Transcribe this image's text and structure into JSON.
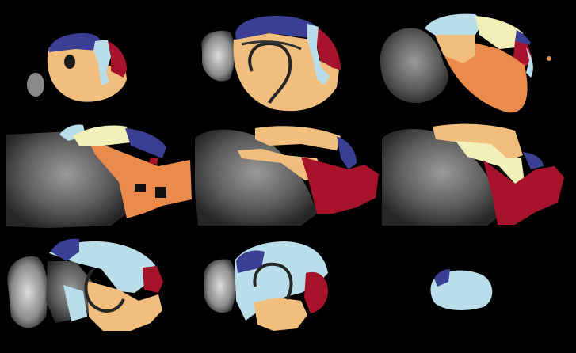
{
  "image": {
    "kind": "brain-atlas-montage",
    "view": "sagittal",
    "rows": 3,
    "cols": 3,
    "background_color": "#000000"
  },
  "palette": {
    "navy": "#3b3f93",
    "light_blue": "#b9dde9",
    "pale_yellow": "#f1f0b8",
    "peach": "#f2be7e",
    "orange": "#ea8a4b",
    "crimson": "#a8132c",
    "gray_tissue": "#7a7a7a"
  },
  "panels": [
    {
      "row": 1,
      "col": 1,
      "tissue_visible": false,
      "regions": [
        "navy",
        "light_blue",
        "crimson",
        "peach"
      ]
    },
    {
      "row": 1,
      "col": 2,
      "tissue_visible": true,
      "regions": [
        "navy",
        "light_blue",
        "crimson",
        "peach"
      ]
    },
    {
      "row": 1,
      "col": 3,
      "tissue_visible": true,
      "regions": [
        "light_blue",
        "pale_yellow",
        "navy",
        "crimson",
        "orange",
        "peach"
      ]
    },
    {
      "row": 2,
      "col": 1,
      "tissue_visible": true,
      "regions": [
        "light_blue",
        "pale_yellow",
        "navy",
        "orange",
        "crimson"
      ]
    },
    {
      "row": 2,
      "col": 2,
      "tissue_visible": true,
      "regions": [
        "peach",
        "navy",
        "crimson"
      ]
    },
    {
      "row": 2,
      "col": 3,
      "tissue_visible": true,
      "regions": [
        "peach",
        "pale_yellow",
        "navy",
        "crimson"
      ]
    },
    {
      "row": 3,
      "col": 1,
      "tissue_visible": true,
      "regions": [
        "navy",
        "light_blue",
        "crimson",
        "peach"
      ]
    },
    {
      "row": 3,
      "col": 2,
      "tissue_visible": true,
      "regions": [
        "navy",
        "light_blue",
        "crimson",
        "peach"
      ]
    },
    {
      "row": 3,
      "col": 3,
      "tissue_visible": false,
      "regions": [
        "navy",
        "light_blue"
      ]
    }
  ]
}
